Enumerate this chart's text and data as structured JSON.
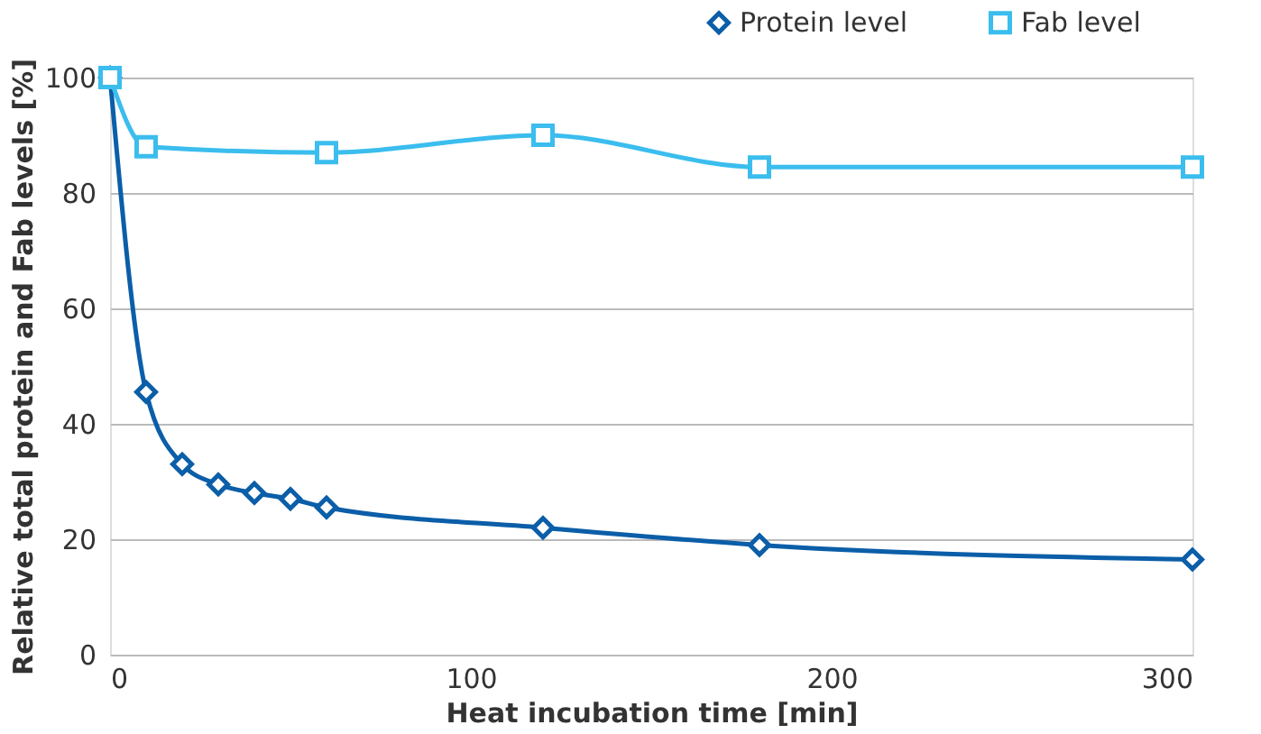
{
  "chart_data": {
    "type": "line",
    "xlabel": "Heat incubation time [min]",
    "ylabel": "Relative total protein and Fab levels [%]",
    "xlim": [
      0,
      300
    ],
    "xticks": [
      0,
      100,
      200,
      300
    ],
    "ylim": [
      0,
      100
    ],
    "yticks": [
      0,
      20,
      40,
      60,
      80,
      100
    ],
    "grid": "y",
    "legend": "top right",
    "line_style": "solid",
    "series": [
      {
        "name": "Protein level",
        "color": "#0b5ea8",
        "marker": "diamond",
        "x": [
          0,
          10,
          20,
          30,
          40,
          50,
          60,
          120,
          180,
          300
        ],
        "values": [
          100,
          45.5,
          33,
          29.5,
          28,
          27,
          25.5,
          22,
          19,
          16.5
        ]
      },
      {
        "name": "Fab level",
        "color": "#3bbdee",
        "marker": "square",
        "x": [
          0,
          10,
          60,
          120,
          180,
          300
        ],
        "values": [
          100,
          88,
          87,
          90,
          84.5,
          84.5
        ]
      }
    ]
  }
}
